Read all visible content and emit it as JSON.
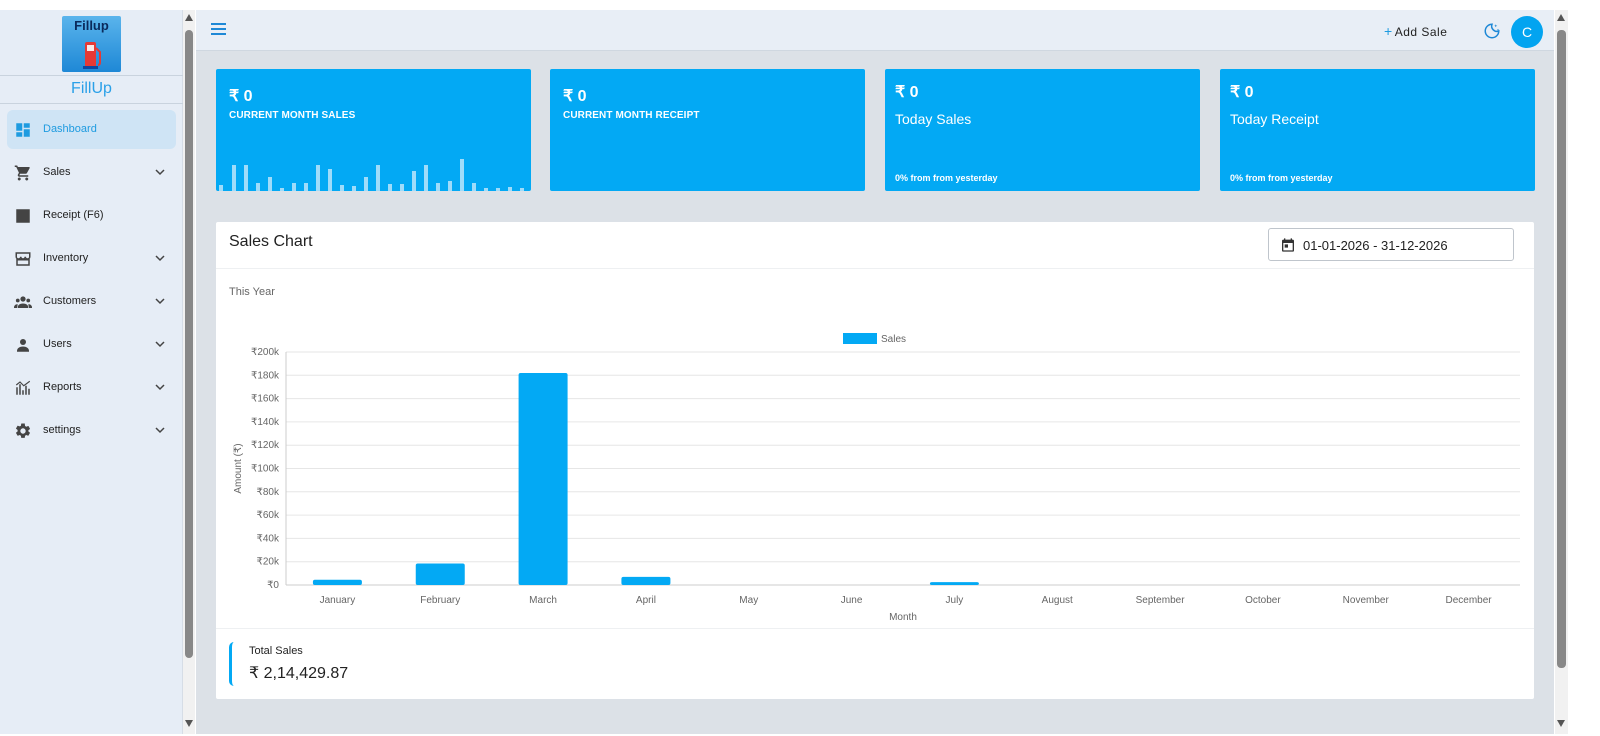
{
  "brand": {
    "logo_text": "Fillup",
    "name": "FillUp"
  },
  "sidebar": {
    "items": [
      {
        "label": "Dashboard",
        "icon": "dashboard-icon",
        "active": true,
        "expandable": false
      },
      {
        "label": "Sales",
        "icon": "cart-icon",
        "active": false,
        "expandable": true
      },
      {
        "label": "Receipt (F6)",
        "icon": "receipt-icon",
        "active": false,
        "expandable": false
      },
      {
        "label": "Inventory",
        "icon": "store-icon",
        "active": false,
        "expandable": true
      },
      {
        "label": "Customers",
        "icon": "group-icon",
        "active": false,
        "expandable": true
      },
      {
        "label": "Users",
        "icon": "person-icon",
        "active": false,
        "expandable": true
      },
      {
        "label": "Reports",
        "icon": "chart-icon",
        "active": false,
        "expandable": true
      },
      {
        "label": "settings",
        "icon": "gear-icon",
        "active": false,
        "expandable": true
      }
    ]
  },
  "header": {
    "add_sale_plus": "+",
    "add_sale_label": "Add Sale",
    "avatar_initial": "C",
    "theme_icon": "moon-icon",
    "menu_icon": "hamburger-icon"
  },
  "cards": [
    {
      "amount": "₹ 0",
      "label": "CURRENT MONTH SALES"
    },
    {
      "amount": "₹ 0",
      "label": "CURRENT MONTH RECEIPT"
    },
    {
      "amount": "₹ 0",
      "label": "Today Sales",
      "sub": "0% from from yesterday"
    },
    {
      "amount": "₹ 0",
      "label": "Today Receipt",
      "sub": "0% from from yesterday"
    }
  ],
  "panel": {
    "title": "Sales Chart",
    "date_range": "01-01-2026 - 31-12-2026",
    "period": "This Year",
    "total_label": "Total Sales",
    "total_value": "₹ 2,14,429.87"
  },
  "colors": {
    "accent": "#03a9f4",
    "sidebar_bg": "#e6edf6",
    "main_bg": "#dce1e7"
  },
  "chart_data": {
    "type": "bar",
    "legend": "Sales",
    "legend_position": "top-center",
    "xlabel": "Month",
    "ylabel": "Amount (₹)",
    "ylim": [
      0,
      200000
    ],
    "yticks": [
      "₹0",
      "₹20k",
      "₹40k",
      "₹60k",
      "₹80k",
      "₹100k",
      "₹120k",
      "₹140k",
      "₹160k",
      "₹180k",
      "₹200k"
    ],
    "categories": [
      "January",
      "February",
      "March",
      "April",
      "May",
      "June",
      "July",
      "August",
      "September",
      "October",
      "November",
      "December"
    ],
    "values": [
      4500,
      18500,
      182000,
      7000,
      0,
      0,
      2500,
      0,
      0,
      0,
      0,
      0
    ],
    "grid": true,
    "color": "#03a9f4"
  }
}
